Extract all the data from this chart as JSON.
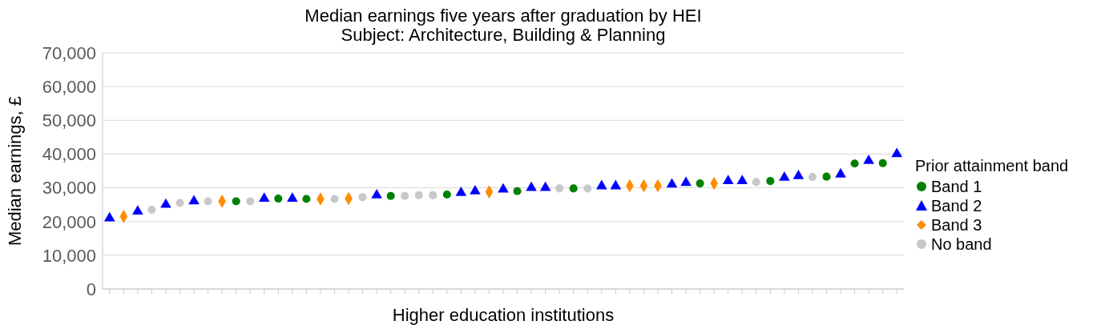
{
  "chart_data": {
    "type": "scatter",
    "title": "Median earnings five years after graduation by HEI",
    "subtitle": "Subject: Architecture, Building & Planning",
    "xlabel": "Higher education institutions",
    "ylabel": "Median earnings, £",
    "legend_title": "Prior attainment band",
    "categories": [
      null,
      null,
      null,
      null,
      null,
      null,
      null,
      null,
      null,
      null,
      null,
      null,
      null,
      null,
      null,
      null,
      null,
      null,
      null,
      null,
      null,
      null,
      null,
      null,
      null,
      null,
      null,
      null,
      null,
      null,
      null,
      null,
      null,
      null,
      null,
      null,
      null,
      null,
      null,
      null,
      null,
      null,
      null,
      null,
      null,
      null,
      null,
      null,
      null,
      null,
      null,
      null,
      null,
      null,
      null,
      null,
      null
    ],
    "series": [
      {
        "name": "Band 1",
        "color": "#008000",
        "marker": "circle",
        "values": [
          null,
          null,
          null,
          null,
          null,
          null,
          null,
          null,
          null,
          26000,
          null,
          null,
          26800,
          null,
          26700,
          null,
          null,
          null,
          null,
          null,
          27600,
          null,
          null,
          null,
          28000,
          null,
          null,
          null,
          null,
          29000,
          null,
          null,
          null,
          29800,
          null,
          null,
          null,
          null,
          null,
          null,
          null,
          null,
          31300,
          null,
          null,
          null,
          null,
          32000,
          null,
          null,
          null,
          33300,
          null,
          37200,
          null,
          37300,
          null
        ]
      },
      {
        "name": "Band 2",
        "color": "#0000ff",
        "marker": "triangle",
        "values": [
          21000,
          null,
          23000,
          null,
          25000,
          null,
          26000,
          null,
          null,
          null,
          null,
          26800,
          null,
          26800,
          null,
          null,
          null,
          null,
          null,
          27800,
          null,
          null,
          null,
          null,
          null,
          28500,
          29000,
          null,
          29500,
          null,
          30000,
          30000,
          null,
          null,
          null,
          30500,
          30500,
          null,
          null,
          null,
          31000,
          31500,
          null,
          null,
          32000,
          32000,
          null,
          null,
          33000,
          33500,
          null,
          null,
          34000,
          null,
          38000,
          null,
          40000
        ]
      },
      {
        "name": "Band 3",
        "color": "#ff8c00",
        "marker": "diamond",
        "values": [
          null,
          21500,
          null,
          null,
          null,
          null,
          null,
          null,
          26000,
          null,
          null,
          null,
          null,
          null,
          null,
          26700,
          null,
          26800,
          null,
          null,
          null,
          null,
          null,
          null,
          null,
          null,
          null,
          28800,
          null,
          null,
          null,
          null,
          null,
          null,
          null,
          null,
          null,
          30600,
          30600,
          30600,
          null,
          null,
          null,
          31300,
          null,
          null,
          null,
          null,
          null,
          null,
          null,
          null,
          null,
          null,
          null,
          null,
          null
        ]
      },
      {
        "name": "No band",
        "color": "#c8c8c8",
        "marker": "circle",
        "values": [
          null,
          null,
          null,
          23500,
          null,
          25500,
          null,
          26000,
          null,
          null,
          26000,
          null,
          null,
          null,
          null,
          null,
          26700,
          null,
          27200,
          null,
          null,
          27600,
          27800,
          27800,
          null,
          null,
          null,
          null,
          null,
          null,
          null,
          null,
          29800,
          null,
          29800,
          null,
          null,
          null,
          null,
          null,
          null,
          null,
          null,
          null,
          null,
          null,
          31700,
          null,
          null,
          null,
          33200,
          null,
          null,
          null,
          null,
          null,
          null
        ]
      }
    ],
    "ylim": [
      0,
      70000
    ],
    "yticks": [
      0,
      {
        "value": 10000,
        "label": "10,000"
      },
      {
        "value": 20000,
        "label": "20,000"
      },
      {
        "value": 30000,
        "label": "30,000"
      },
      {
        "value": 40000,
        "label": "40,000"
      },
      {
        "value": 50000,
        "label": "50,000"
      },
      {
        "value": 60000,
        "label": "60,000"
      },
      {
        "value": 70000,
        "label": "70,000"
      }
    ],
    "grid": "y",
    "legend": "right"
  }
}
